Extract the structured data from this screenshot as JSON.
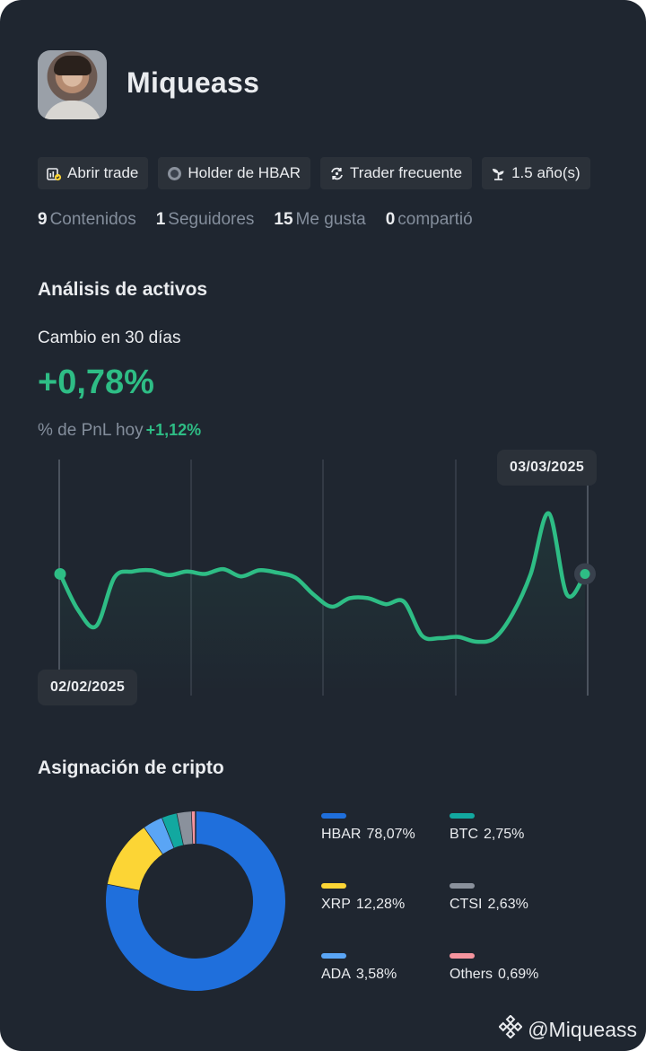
{
  "profile": {
    "username": "Miqueass"
  },
  "tags": [
    {
      "icon": "trade-icon",
      "label": "Abrir trade"
    },
    {
      "icon": "hbar-coin-icon",
      "label": "Holder de HBAR"
    },
    {
      "icon": "repeat-icon",
      "label": "Trader frecuente"
    },
    {
      "icon": "sprout-icon",
      "label": "1.5 año(s)"
    }
  ],
  "stats": [
    {
      "num": "9",
      "label": "Contenidos"
    },
    {
      "num": "1",
      "label": "Seguidores"
    },
    {
      "num": "15",
      "label": "Me gusta"
    },
    {
      "num": "0",
      "label": "compartió"
    }
  ],
  "analysis": {
    "title": "Análisis de activos",
    "change_label": "Cambio en 30 días",
    "change_value": "+0,78%",
    "pnl_label": "% de PnL hoy",
    "pnl_value": "+1,12%",
    "start_date": "02/02/2025",
    "end_date": "03/03/2025",
    "line_color": "#2ebd85"
  },
  "chart_data": {
    "type": "line",
    "title": "",
    "xlabel": "",
    "ylabel": "",
    "x_start": "02/02/2025",
    "x_end": "03/03/2025",
    "values": [
      0.05,
      -0.25,
      -0.38,
      0.02,
      0.07,
      0.08,
      0.04,
      0.07,
      0.05,
      0.09,
      0.03,
      0.08,
      0.06,
      0.02,
      -0.12,
      -0.22,
      -0.15,
      -0.15,
      -0.2,
      -0.18,
      -0.46,
      -0.48,
      -0.47,
      -0.51,
      -0.48,
      -0.28,
      0.05,
      0.55,
      -0.12,
      0.05
    ],
    "grid": false
  },
  "allocation": {
    "title": "Asignación de cripto",
    "items": [
      {
        "name": "HBAR",
        "value": "78,07%",
        "pct": 78.07,
        "color": "#1f6fdc"
      },
      {
        "name": "BTC",
        "value": "2,75%",
        "pct": 2.75,
        "color": "#12a8a0"
      },
      {
        "name": "XRP",
        "value": "12,28%",
        "pct": 12.28,
        "color": "#fcd535"
      },
      {
        "name": "CTSI",
        "value": "2,63%",
        "pct": 2.63,
        "color": "#8a919c"
      },
      {
        "name": "ADA",
        "value": "3,58%",
        "pct": 3.58,
        "color": "#5aa5f5"
      },
      {
        "name": "Others",
        "value": "0,69%",
        "pct": 0.69,
        "color": "#f5949e"
      }
    ],
    "ring_order": [
      "HBAR",
      "XRP",
      "ADA",
      "BTC",
      "CTSI",
      "Others"
    ]
  },
  "watermark": {
    "handle": "@Miqueass",
    "icon": "binance-logo-icon"
  }
}
